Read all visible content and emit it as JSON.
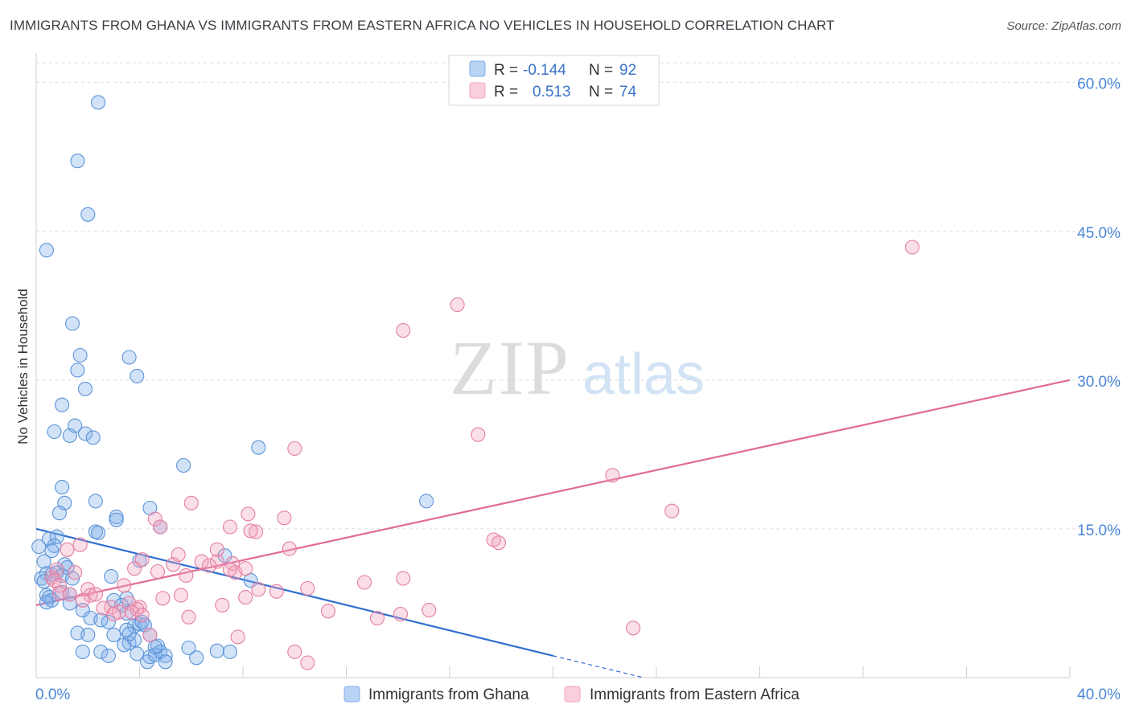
{
  "title": "IMMIGRANTS FROM GHANA VS IMMIGRANTS FROM EASTERN AFRICA NO VEHICLES IN HOUSEHOLD CORRELATION CHART",
  "source": "Source: ZipAtlas.com",
  "watermark": {
    "zip": "ZIP",
    "atlas": "atlas"
  },
  "legend_box": {
    "rows": [
      {
        "r_label": "R =",
        "r_value": "-0.144",
        "n_label": "N =",
        "n_value": "92",
        "color": "#7fb0ea"
      },
      {
        "r_label": "R =",
        "r_value": "0.513",
        "n_label": "N =",
        "n_value": "74",
        "color": "#f2a3bd"
      }
    ]
  },
  "chart_data": {
    "type": "scatter",
    "ylabel": "No Vehicles in Household",
    "x_tick_labels": [
      "0.0%",
      "40.0%"
    ],
    "y_tick_labels": [
      "15.0%",
      "30.0%",
      "45.0%",
      "60.0%"
    ],
    "y_ticks": [
      15,
      30,
      45,
      60
    ],
    "x_ticks_minor": [
      4,
      8,
      12,
      16,
      20,
      24,
      28,
      32,
      36,
      40
    ],
    "xlim": [
      0,
      40
    ],
    "ylim": [
      0,
      62
    ],
    "grid": true,
    "legend_position": "bottom",
    "series": [
      {
        "name": "Immigrants from Ghana",
        "color": "#7fb0ea",
        "stroke": "#5b93d8",
        "trend": {
          "x": [
            0,
            20
          ],
          "y": [
            15.0,
            2.2
          ],
          "dash_to": [
            23.5,
            0.0
          ],
          "color": "#2f6fd1"
        },
        "points": [
          [
            2.4,
            58.0
          ],
          [
            1.6,
            52.1
          ],
          [
            2.0,
            46.7
          ],
          [
            0.4,
            43.1
          ],
          [
            1.4,
            35.7
          ],
          [
            1.7,
            32.5
          ],
          [
            1.6,
            31.0
          ],
          [
            3.6,
            32.3
          ],
          [
            3.9,
            30.4
          ],
          [
            1.9,
            29.1
          ],
          [
            1.0,
            27.5
          ],
          [
            0.7,
            24.8
          ],
          [
            1.3,
            24.4
          ],
          [
            1.5,
            25.4
          ],
          [
            1.9,
            24.6
          ],
          [
            2.2,
            24.2
          ],
          [
            8.6,
            23.2
          ],
          [
            5.7,
            21.4
          ],
          [
            1.0,
            19.2
          ],
          [
            1.1,
            17.6
          ],
          [
            2.3,
            17.8
          ],
          [
            0.9,
            16.6
          ],
          [
            3.1,
            16.2
          ],
          [
            4.4,
            17.1
          ],
          [
            15.1,
            17.8
          ],
          [
            3.1,
            15.9
          ],
          [
            2.3,
            14.7
          ],
          [
            2.4,
            14.6
          ],
          [
            4.8,
            15.2
          ],
          [
            0.5,
            14.0
          ],
          [
            0.8,
            14.2
          ],
          [
            0.7,
            13.3
          ],
          [
            0.1,
            13.2
          ],
          [
            0.6,
            12.8
          ],
          [
            0.3,
            11.7
          ],
          [
            1.1,
            11.4
          ],
          [
            1.2,
            11.1
          ],
          [
            4.0,
            11.8
          ],
          [
            7.3,
            12.3
          ],
          [
            0.4,
            10.5
          ],
          [
            0.6,
            10.4
          ],
          [
            0.8,
            10.6
          ],
          [
            1.0,
            10.3
          ],
          [
            0.2,
            10.0
          ],
          [
            0.3,
            9.7
          ],
          [
            1.4,
            10.0
          ],
          [
            2.9,
            10.2
          ],
          [
            8.3,
            9.8
          ],
          [
            0.4,
            8.3
          ],
          [
            0.5,
            8.1
          ],
          [
            1.0,
            8.6
          ],
          [
            1.3,
            8.4
          ],
          [
            0.6,
            7.8
          ],
          [
            0.4,
            7.6
          ],
          [
            1.3,
            7.5
          ],
          [
            3.0,
            7.8
          ],
          [
            1.8,
            6.8
          ],
          [
            3.5,
            8.0
          ],
          [
            3.3,
            7.3
          ],
          [
            3.5,
            6.5
          ],
          [
            2.1,
            6.0
          ],
          [
            2.5,
            5.8
          ],
          [
            2.8,
            5.6
          ],
          [
            3.8,
            5.2
          ],
          [
            3.5,
            4.8
          ],
          [
            3.0,
            4.3
          ],
          [
            4.0,
            5.4
          ],
          [
            4.1,
            5.6
          ],
          [
            4.2,
            5.3
          ],
          [
            1.6,
            4.5
          ],
          [
            2.0,
            4.3
          ],
          [
            3.6,
            3.5
          ],
          [
            3.8,
            3.8
          ],
          [
            3.4,
            3.3
          ],
          [
            4.4,
            4.3
          ],
          [
            1.8,
            2.6
          ],
          [
            2.5,
            2.6
          ],
          [
            2.8,
            2.2
          ],
          [
            3.9,
            2.4
          ],
          [
            4.7,
            3.2
          ],
          [
            4.8,
            2.6
          ],
          [
            5.0,
            2.2
          ],
          [
            4.3,
            1.6
          ],
          [
            4.4,
            2.1
          ],
          [
            4.6,
            2.3
          ],
          [
            5.0,
            1.6
          ],
          [
            6.2,
            2.0
          ],
          [
            7.0,
            2.7
          ],
          [
            7.5,
            2.6
          ],
          [
            4.6,
            3.1
          ],
          [
            3.6,
            4.4
          ],
          [
            5.9,
            3.0
          ]
        ]
      },
      {
        "name": "Immigrants from Eastern Africa",
        "color": "#f2a3bd",
        "stroke": "#e57ea2",
        "trend": {
          "x": [
            0,
            40
          ],
          "y": [
            7.3,
            30.0
          ],
          "color": "#e06b96"
        },
        "points": [
          [
            33.9,
            43.4
          ],
          [
            16.3,
            37.6
          ],
          [
            14.2,
            35.0
          ],
          [
            17.1,
            24.5
          ],
          [
            10.0,
            23.1
          ],
          [
            22.3,
            20.4
          ],
          [
            6.0,
            17.6
          ],
          [
            24.6,
            16.8
          ],
          [
            8.2,
            16.5
          ],
          [
            9.6,
            16.1
          ],
          [
            4.6,
            16.0
          ],
          [
            4.8,
            15.2
          ],
          [
            7.5,
            15.2
          ],
          [
            8.5,
            14.7
          ],
          [
            8.3,
            14.8
          ],
          [
            17.7,
            13.9
          ],
          [
            17.9,
            13.6
          ],
          [
            9.8,
            13.0
          ],
          [
            7.0,
            12.9
          ],
          [
            1.7,
            13.4
          ],
          [
            1.2,
            12.9
          ],
          [
            5.5,
            12.4
          ],
          [
            6.4,
            11.7
          ],
          [
            7.6,
            11.5
          ],
          [
            7.0,
            11.7
          ],
          [
            4.1,
            11.9
          ],
          [
            5.3,
            11.4
          ],
          [
            3.8,
            11.0
          ],
          [
            6.7,
            11.3
          ],
          [
            7.7,
            10.6
          ],
          [
            7.5,
            10.9
          ],
          [
            8.1,
            11.0
          ],
          [
            1.5,
            10.6
          ],
          [
            0.6,
            10.1
          ],
          [
            0.8,
            10.9
          ],
          [
            5.8,
            10.3
          ],
          [
            4.7,
            10.7
          ],
          [
            12.7,
            9.6
          ],
          [
            14.2,
            10.0
          ],
          [
            0.7,
            9.8
          ],
          [
            0.9,
            9.3
          ],
          [
            2.0,
            8.9
          ],
          [
            3.4,
            9.3
          ],
          [
            10.5,
            9.0
          ],
          [
            9.3,
            8.7
          ],
          [
            8.6,
            8.9
          ],
          [
            0.9,
            8.5
          ],
          [
            1.3,
            8.4
          ],
          [
            2.1,
            8.3
          ],
          [
            2.3,
            8.4
          ],
          [
            5.6,
            8.3
          ],
          [
            8.1,
            8.1
          ],
          [
            1.8,
            7.8
          ],
          [
            4.9,
            8.0
          ],
          [
            2.9,
            7.1
          ],
          [
            3.6,
            7.5
          ],
          [
            4.0,
            7.1
          ],
          [
            3.9,
            6.9
          ],
          [
            3.7,
            6.6
          ],
          [
            3.2,
            6.6
          ],
          [
            2.6,
            7.0
          ],
          [
            7.2,
            7.3
          ],
          [
            11.3,
            6.7
          ],
          [
            15.2,
            6.8
          ],
          [
            14.1,
            6.4
          ],
          [
            13.2,
            6.0
          ],
          [
            5.9,
            6.1
          ],
          [
            4.1,
            6.3
          ],
          [
            23.1,
            5.0
          ],
          [
            4.4,
            4.3
          ],
          [
            7.8,
            4.1
          ],
          [
            10.0,
            2.6
          ],
          [
            10.5,
            1.5
          ],
          [
            3.0,
            6.4
          ]
        ]
      }
    ]
  }
}
